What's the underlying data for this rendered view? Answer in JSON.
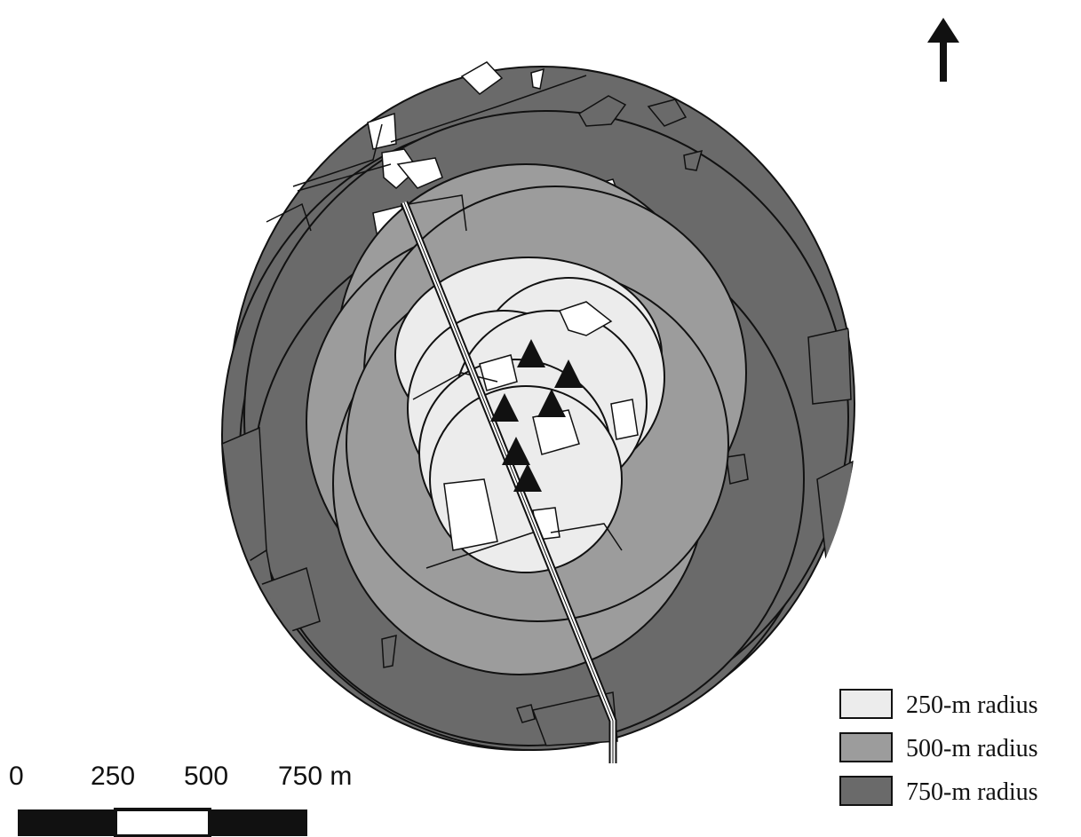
{
  "north_arrow": {
    "icon": "north-arrow-icon"
  },
  "colors": {
    "ring_250": "#ececec",
    "ring_500": "#9c9c9c",
    "ring_750": "#6a6a6a",
    "outline": "#111111",
    "cutout": "#ffffff",
    "site_marker": "#111111"
  },
  "site_count": 6,
  "scale_bar": {
    "ticks": [
      "0",
      "250",
      "500",
      "750 m"
    ],
    "segments": [
      "black",
      "white",
      "black"
    ]
  },
  "legend": {
    "items": [
      {
        "label": "250-m radius",
        "color": "#ececec"
      },
      {
        "label": "500-m radius",
        "color": "#9c9c9c"
      },
      {
        "label": "750-m radius",
        "color": "#6a6a6a"
      }
    ]
  }
}
